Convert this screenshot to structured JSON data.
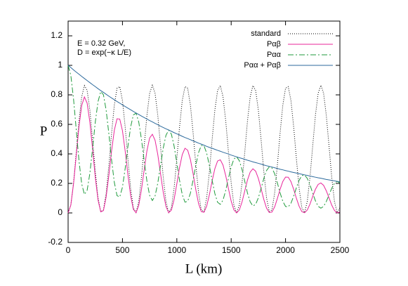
{
  "chart_data": {
    "type": "line",
    "xlabel": "L (km)",
    "ylabel": "P",
    "annotations": [
      "E = 0.32 GeV,",
      "D = exp(−κ L/E)"
    ],
    "xlim": [
      0,
      2500
    ],
    "xticks": [
      0,
      500,
      1000,
      1500,
      2000,
      2500
    ],
    "ylim": [
      -0.2,
      1.3
    ],
    "yticks": [
      -0.2,
      0,
      0.2,
      0.4,
      0.6,
      0.8,
      1,
      1.2
    ],
    "legend": "top-right",
    "grid": false,
    "x": [
      0,
      25,
      50,
      75,
      100,
      125,
      150,
      175,
      200,
      225,
      250,
      275,
      300,
      325,
      350,
      375,
      400,
      425,
      450,
      475,
      500,
      525,
      550,
      575,
      600,
      625,
      650,
      675,
      700,
      725,
      750,
      775,
      800,
      825,
      850,
      875,
      900,
      925,
      950,
      975,
      1000,
      1025,
      1050,
      1075,
      1100,
      1125,
      1150,
      1175,
      1200,
      1225,
      1250,
      1275,
      1300,
      1325,
      1350,
      1375,
      1400,
      1425,
      1450,
      1475,
      1500,
      1525,
      1550,
      1575,
      1600,
      1625,
      1650,
      1675,
      1700,
      1725,
      1750,
      1775,
      1800,
      1825,
      1850,
      1875,
      1900,
      1925,
      1950,
      1975,
      2000,
      2025,
      2050,
      2075,
      2100,
      2125,
      2150,
      2175,
      2200,
      2225,
      2250,
      2275,
      2300,
      2325,
      2350,
      2375,
      2400,
      2425,
      2450,
      2475,
      2500
    ],
    "series": [
      {
        "name": "standard",
        "color": "#000000",
        "dash": "1,2",
        "values": [
          0,
          0.054,
          0.204,
          0.411,
          0.623,
          0.787,
          0.863,
          0.83,
          0.697,
          0.498,
          0.282,
          0.104,
          0.009,
          0.02,
          0.135,
          0.324,
          0.541,
          0.73,
          0.845,
          0.856,
          0.761,
          0.582,
          0.367,
          0.168,
          0.035,
          0.002,
          0.078,
          0.242,
          0.454,
          0.661,
          0.811,
          0.865,
          0.811,
          0.661,
          0.454,
          0.242,
          0.078,
          0.002,
          0.035,
          0.168,
          0.367,
          0.582,
          0.761,
          0.856,
          0.845,
          0.73,
          0.541,
          0.324,
          0.135,
          0.02,
          0.009,
          0.104,
          0.282,
          0.498,
          0.697,
          0.83,
          0.863,
          0.787,
          0.623,
          0.411,
          0.204,
          0.054,
          0,
          0.054,
          0.204,
          0.411,
          0.623,
          0.787,
          0.863,
          0.83,
          0.697,
          0.498,
          0.282,
          0.104,
          0.009,
          0.02,
          0.135,
          0.324,
          0.541,
          0.73,
          0.845,
          0.856,
          0.761,
          0.582,
          0.367,
          0.168,
          0.035,
          0.002,
          0.078,
          0.242,
          0.454,
          0.661,
          0.811,
          0.865,
          0.811,
          0.661,
          0.454,
          0.242,
          0.078,
          0.002,
          0.035
        ]
      },
      {
        "name": "Pαβ",
        "color": "#e8259a",
        "dash": "none",
        "values": [
          0,
          0.053,
          0.198,
          0.392,
          0.585,
          0.728,
          0.786,
          0.744,
          0.615,
          0.433,
          0.241,
          0.088,
          0.007,
          0.016,
          0.109,
          0.256,
          0.421,
          0.56,
          0.638,
          0.636,
          0.557,
          0.419,
          0.26,
          0.117,
          0.024,
          0.001,
          0.052,
          0.159,
          0.293,
          0.421,
          0.508,
          0.533,
          0.492,
          0.395,
          0.267,
          0.14,
          0.044,
          0.001,
          0.019,
          0.091,
          0.197,
          0.307,
          0.395,
          0.438,
          0.425,
          0.362,
          0.264,
          0.156,
          0.064,
          0.009,
          0.004,
          0.047,
          0.125,
          0.218,
          0.3,
          0.352,
          0.36,
          0.324,
          0.252,
          0.164,
          0.08,
          0.021,
          0,
          0.02,
          0.075,
          0.149,
          0.223,
          0.277,
          0.299,
          0.283,
          0.234,
          0.165,
          0.092,
          0.033,
          0.003,
          0.006,
          0.041,
          0.098,
          0.16,
          0.213,
          0.243,
          0.242,
          0.212,
          0.16,
          0.099,
          0.045,
          0.009,
          0.001,
          0.02,
          0.06,
          0.112,
          0.16,
          0.193,
          0.203,
          0.187,
          0.15,
          0.102,
          0.053,
          0.017,
          0,
          0.007
        ]
      },
      {
        "name": "Pαα",
        "color": "#1f9a3c",
        "dash": "8,3,2,3",
        "values": [
          1,
          0.932,
          0.771,
          0.562,
          0.354,
          0.197,
          0.125,
          0.153,
          0.268,
          0.436,
          0.615,
          0.754,
          0.822,
          0.801,
          0.695,
          0.535,
          0.358,
          0.207,
          0.117,
          0.108,
          0.175,
          0.302,
          0.45,
          0.582,
          0.664,
          0.676,
          0.615,
          0.497,
          0.353,
          0.215,
          0.118,
          0.084,
          0.115,
          0.203,
          0.321,
          0.439,
          0.526,
          0.561,
          0.534,
          0.453,
          0.339,
          0.221,
          0.124,
          0.073,
          0.079,
          0.134,
          0.224,
          0.325,
          0.409,
          0.457,
          0.455,
          0.404,
          0.319,
          0.22,
          0.131,
          0.072,
          0.058,
          0.087,
          0.153,
          0.235,
          0.312,
          0.365,
          0.38,
          0.354,
          0.294,
          0.214,
          0.134,
          0.075,
          0.047,
          0.058,
          0.102,
          0.166,
          0.233,
          0.287,
          0.312,
          0.305,
          0.265,
          0.203,
          0.136,
          0.079,
          0.044,
          0.041,
          0.066,
          0.114,
          0.171,
          0.221,
          0.253,
          0.257,
          0.234,
          0.19,
          0.134,
          0.082,
          0.045,
          0.032,
          0.044,
          0.077,
          0.122,
          0.167,
          0.2,
          0.214,
          0.203
        ]
      },
      {
        "name": "Pαα + Pαβ",
        "color": "#2c6a9c",
        "dash": "none",
        "values": [
          1,
          0.985,
          0.969,
          0.954,
          0.94,
          0.925,
          0.911,
          0.897,
          0.883,
          0.869,
          0.856,
          0.842,
          0.829,
          0.817,
          0.804,
          0.791,
          0.779,
          0.767,
          0.755,
          0.744,
          0.732,
          0.721,
          0.71,
          0.699,
          0.688,
          0.677,
          0.667,
          0.656,
          0.646,
          0.636,
          0.626,
          0.617,
          0.607,
          0.598,
          0.588,
          0.579,
          0.57,
          0.562,
          0.553,
          0.544,
          0.536,
          0.528,
          0.519,
          0.511,
          0.504,
          0.496,
          0.488,
          0.481,
          0.473,
          0.466,
          0.459,
          0.451,
          0.444,
          0.438,
          0.431,
          0.424,
          0.418,
          0.411,
          0.405,
          0.399,
          0.392,
          0.386,
          0.38,
          0.374,
          0.369,
          0.363,
          0.357,
          0.352,
          0.346,
          0.341,
          0.336,
          0.331,
          0.325,
          0.32,
          0.315,
          0.311,
          0.306,
          0.301,
          0.296,
          0.292,
          0.287,
          0.283,
          0.278,
          0.274,
          0.27,
          0.266,
          0.262,
          0.258,
          0.254,
          0.25,
          0.246,
          0.242,
          0.238,
          0.235,
          0.231,
          0.227,
          0.224,
          0.22,
          0.217,
          0.214,
          0.21
        ]
      }
    ]
  }
}
